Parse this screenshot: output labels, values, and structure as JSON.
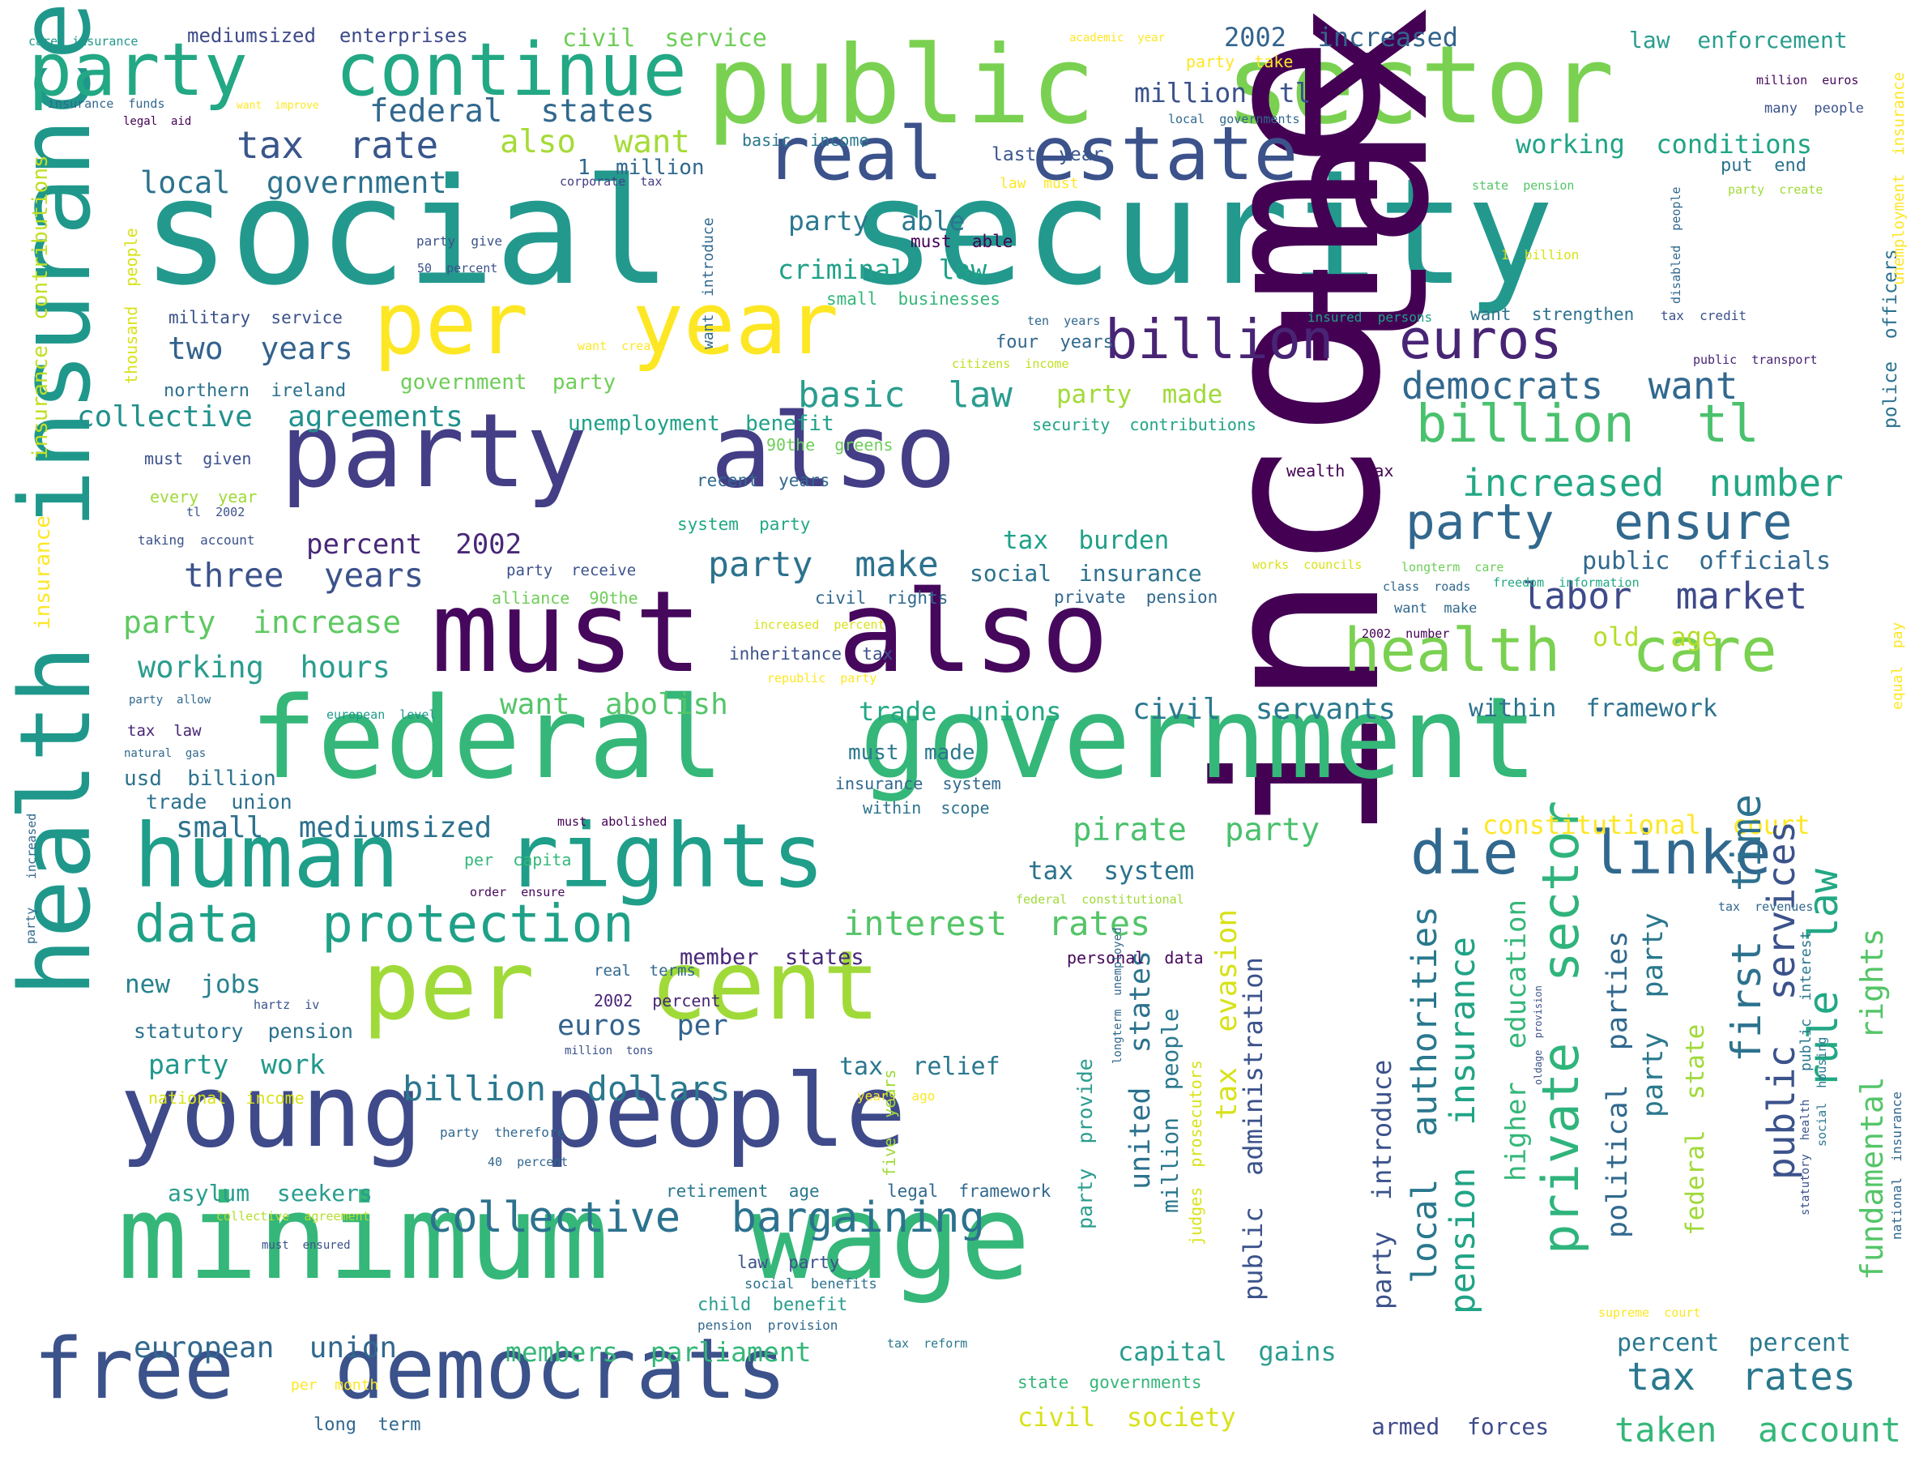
{
  "words": [
    {
      "t": "social  security",
      "c": "#23998e"
    },
    {
      "t": "public  sector",
      "c": "#7ad151"
    },
    {
      "t": "tax",
      "c": "#440154"
    },
    {
      "t": "income",
      "c": "#440154"
    },
    {
      "t": "party  also",
      "c": "#433e85"
    },
    {
      "t": "must  also",
      "c": "#46085c"
    },
    {
      "t": "federal  government",
      "c": "#35b779"
    },
    {
      "t": "health  insurance",
      "c": "#1f988b"
    },
    {
      "t": "minimum  wage",
      "c": "#35b779"
    },
    {
      "t": "per  cent",
      "c": "#a0da39"
    },
    {
      "t": "young  people",
      "c": "#3e4a89"
    },
    {
      "t": "free  democrats",
      "c": "#3b528b"
    },
    {
      "t": "human  rights",
      "c": "#1f9e89"
    },
    {
      "t": "real  estate",
      "c": "#3b528b"
    },
    {
      "t": "per  year",
      "c": "#fde725"
    },
    {
      "t": "party  continue",
      "c": "#22a884"
    },
    {
      "t": "billion  euros",
      "c": "#482475"
    },
    {
      "t": "billion  tl",
      "c": "#4ac16d"
    },
    {
      "t": "health  care",
      "c": "#7ad151"
    },
    {
      "t": "die  linke",
      "c": "#31688e"
    },
    {
      "t": "data  protection",
      "c": "#1fa188"
    },
    {
      "t": "collective  bargaining",
      "c": "#2c728e"
    },
    {
      "t": "party  ensure",
      "c": "#31688e"
    },
    {
      "t": "private  sector",
      "c": "#2fb47c"
    },
    {
      "t": "democrats  want",
      "c": "#31688e"
    },
    {
      "t": "increased  number",
      "c": "#22a884"
    },
    {
      "t": "labor  market",
      "c": "#3e4a89"
    },
    {
      "t": "tax  rates",
      "c": "#2a788e"
    },
    {
      "t": "taken  account",
      "c": "#35b779"
    },
    {
      "t": "tax  rate",
      "c": "#39568c"
    },
    {
      "t": "federal  states",
      "c": "#31688e"
    },
    {
      "t": "also  want",
      "c": "#a5db36"
    },
    {
      "t": "local  government",
      "c": "#2c728e"
    },
    {
      "t": "basic  law",
      "c": "#2a9d8f"
    },
    {
      "t": "party  made",
      "c": "#a0da39"
    },
    {
      "t": "collective  agreements",
      "c": "#21918c"
    },
    {
      "t": "two  years",
      "c": "#33638d"
    },
    {
      "t": "three  years",
      "c": "#3b528b"
    },
    {
      "t": "party  make",
      "c": "#2c728e"
    },
    {
      "t": "percent  2002",
      "c": "#482878"
    },
    {
      "t": "party  increase",
      "c": "#5ec962"
    },
    {
      "t": "working  hours",
      "c": "#2a9d8f"
    },
    {
      "t": "interest  rates",
      "c": "#54c568"
    },
    {
      "t": "civil  servants",
      "c": "#2a788e"
    },
    {
      "t": "pirate  party",
      "c": "#4ac16d"
    },
    {
      "t": "constitutional  court",
      "c": "#fde725"
    },
    {
      "t": "working  conditions",
      "c": "#20a486"
    },
    {
      "t": "law  enforcement",
      "c": "#2a9d8f"
    },
    {
      "t": "2002  increased",
      "c": "#33638d"
    },
    {
      "t": "civil  service",
      "c": "#6ece58"
    },
    {
      "t": "million  tl",
      "c": "#3b528b"
    },
    {
      "t": "party  able",
      "c": "#2a788e"
    },
    {
      "t": "criminal  law",
      "c": "#1fa188"
    },
    {
      "t": "euros  per",
      "c": "#33638d"
    },
    {
      "t": "billion  dollars",
      "c": "#2a788e"
    },
    {
      "t": "tax  relief",
      "c": "#2a788e"
    },
    {
      "t": "party  work",
      "c": "#1f988b"
    },
    {
      "t": "new  jobs",
      "c": "#26828e"
    },
    {
      "t": "tax  system",
      "c": "#2c728e"
    },
    {
      "t": "small  mediumsized",
      "c": "#2c728e"
    },
    {
      "t": "european  union",
      "c": "#31688e"
    },
    {
      "t": "members  parliament",
      "c": "#35b779"
    },
    {
      "t": "capital  gains",
      "c": "#2a9d8f"
    },
    {
      "t": "percent  percent",
      "c": "#2a788e"
    },
    {
      "t": "armed  forces",
      "c": "#3e4a89"
    },
    {
      "t": "civil  society",
      "c": "#d8e219"
    },
    {
      "t": "trade  unions",
      "c": "#22a884"
    },
    {
      "t": "want  abolish",
      "c": "#54c568"
    },
    {
      "t": "within  framework",
      "c": "#2c728e"
    },
    {
      "t": "tax  burden",
      "c": "#1fa188"
    },
    {
      "t": "social  insurance",
      "c": "#2c728e"
    },
    {
      "t": "public  officials",
      "c": "#31688e"
    },
    {
      "t": "old  age",
      "c": "#b5de2b"
    },
    {
      "t": "unemployment  benefit",
      "c": "#1fa188"
    },
    {
      "t": "government  party",
      "c": "#6ece58"
    },
    {
      "t": "asylum  seekers",
      "c": "#2a9d8f"
    },
    {
      "t": "member  states",
      "c": "#482878"
    },
    {
      "t": "statutory  pension",
      "c": "#2c728e"
    },
    {
      "t": "local  authorities",
      "c": "#2a788e"
    },
    {
      "t": "pension  insurance",
      "c": "#20a486"
    },
    {
      "t": "first  time",
      "c": "#2c728e"
    },
    {
      "t": "public  services",
      "c": "#3b528b"
    },
    {
      "t": "rule  law",
      "c": "#22a884"
    },
    {
      "t": "fundamental  rights",
      "c": "#54c568"
    },
    {
      "t": "political  parties",
      "c": "#31688e"
    },
    {
      "t": "party  party",
      "c": "#2a788e"
    },
    {
      "t": "higher  education",
      "c": "#35b779"
    },
    {
      "t": "federal  state",
      "c": "#a0da39"
    },
    {
      "t": "tax  evasion",
      "c": "#d8e219"
    },
    {
      "t": "public  administration",
      "c": "#3b528b"
    },
    {
      "t": "party  introduce",
      "c": "#3b528b"
    },
    {
      "t": "united  states",
      "c": "#2c728e"
    },
    {
      "t": "million  people",
      "c": "#2a788e"
    },
    {
      "t": "party  provide",
      "c": "#2a9d8f"
    },
    {
      "t": "insurance  contributions",
      "c": "#c2df23"
    },
    {
      "t": "police  officers",
      "c": "#2c728e"
    },
    {
      "t": "unemployment  insurance",
      "c": "#fde725"
    },
    {
      "t": "mediumsized  enterprises",
      "c": "#3e4a89"
    },
    {
      "t": "care  insurance",
      "c": "#1f988b"
    },
    {
      "t": "insurance  funds",
      "c": "#31688e"
    },
    {
      "t": "legal  aid",
      "c": "#440154"
    },
    {
      "t": "want  improve",
      "c": "#fde725"
    },
    {
      "t": "basic  income",
      "c": "#2a788e"
    },
    {
      "t": "last  year",
      "c": "#39568c"
    },
    {
      "t": "1  million",
      "c": "#31688e"
    },
    {
      "t": "corporate  tax",
      "c": "#433e85"
    },
    {
      "t": "must  able",
      "c": "#440154"
    },
    {
      "t": "law  must",
      "c": "#fde725"
    },
    {
      "t": "academic  year",
      "c": "#fde725"
    },
    {
      "t": "party  take",
      "c": "#fde725"
    },
    {
      "t": "million  euros",
      "c": "#46085c"
    },
    {
      "t": "local  governments",
      "c": "#31688e"
    },
    {
      "t": "many  people",
      "c": "#3b528b"
    },
    {
      "t": "put  end",
      "c": "#2c728e"
    },
    {
      "t": "state  pension",
      "c": "#54c568"
    },
    {
      "t": "party  create",
      "c": "#a0da39"
    },
    {
      "t": "1  billion",
      "c": "#d8e219"
    },
    {
      "t": "party  give",
      "c": "#3b528b"
    },
    {
      "t": "50  percent",
      "c": "#3b528b"
    },
    {
      "t": "military  service",
      "c": "#3b528b"
    },
    {
      "t": "northern  ireland",
      "c": "#2c728e"
    },
    {
      "t": "small  businesses",
      "c": "#35b779"
    },
    {
      "t": "four  years",
      "c": "#31688e"
    },
    {
      "t": "ten  years",
      "c": "#31688e"
    },
    {
      "t": "insured  persons",
      "c": "#1fa188"
    },
    {
      "t": "want  strengthen",
      "c": "#2c728e"
    },
    {
      "t": "tax  credit",
      "c": "#3b528b"
    },
    {
      "t": "public  transport",
      "c": "#482475"
    },
    {
      "t": "want  create",
      "c": "#fde725"
    },
    {
      "t": "citizens  income",
      "c": "#c2df23"
    },
    {
      "t": "security  contributions",
      "c": "#20a486"
    },
    {
      "t": "must  given",
      "c": "#3b528b"
    },
    {
      "t": "90the  greens",
      "c": "#6ece58"
    },
    {
      "t": "recent  years",
      "c": "#31688e"
    },
    {
      "t": "every  year",
      "c": "#a0da39"
    },
    {
      "t": "tl  2002",
      "c": "#3b528b"
    },
    {
      "t": "taking  account",
      "c": "#3b528b"
    },
    {
      "t": "system  party",
      "c": "#22a884"
    },
    {
      "t": "wealth  tax",
      "c": "#440154"
    },
    {
      "t": "party  receive",
      "c": "#3b528b"
    },
    {
      "t": "alliance  90the",
      "c": "#6ece58"
    },
    {
      "t": "civil  rights",
      "c": "#31688e"
    },
    {
      "t": "private  pension",
      "c": "#31688e"
    },
    {
      "t": "works  councils",
      "c": "#d8e219"
    },
    {
      "t": "longterm  care",
      "c": "#6ece58"
    },
    {
      "t": "class  roads",
      "c": "#31688e"
    },
    {
      "t": "freedom  information",
      "c": "#22a884"
    },
    {
      "t": "want  make",
      "c": "#31688e"
    },
    {
      "t": "2002  number",
      "c": "#440154"
    },
    {
      "t": "increased  percent",
      "c": "#d8e219"
    },
    {
      "t": "inheritance  tax",
      "c": "#3b528b"
    },
    {
      "t": "republic  party",
      "c": "#fde725"
    },
    {
      "t": "party  allow",
      "c": "#31688e"
    },
    {
      "t": "tax  law",
      "c": "#482475"
    },
    {
      "t": "natural  gas",
      "c": "#31688e"
    },
    {
      "t": "european  level",
      "c": "#1f988b"
    },
    {
      "t": "usd  billion",
      "c": "#2c728e"
    },
    {
      "t": "trade  union",
      "c": "#2c728e"
    },
    {
      "t": "must  made",
      "c": "#2a788e"
    },
    {
      "t": "insurance  system",
      "c": "#31688e"
    },
    {
      "t": "within  scope",
      "c": "#2c728e"
    },
    {
      "t": "must  abolished",
      "c": "#440154"
    },
    {
      "t": "per  capita",
      "c": "#35b779"
    },
    {
      "t": "order  ensure",
      "c": "#46085c"
    },
    {
      "t": "federal  constitutional",
      "c": "#a0da39"
    },
    {
      "t": "personal  data",
      "c": "#46085c"
    },
    {
      "t": "real  terms",
      "c": "#31688e"
    },
    {
      "t": "2002  percent",
      "c": "#482475"
    },
    {
      "t": "hartz  iv",
      "c": "#3b528b"
    },
    {
      "t": "million  tons",
      "c": "#3b528b"
    },
    {
      "t": "national  income",
      "c": "#d8e219"
    },
    {
      "t": "years  ago",
      "c": "#fde725"
    },
    {
      "t": "party  therefore",
      "c": "#31688e"
    },
    {
      "t": "40  percent",
      "c": "#31688e"
    },
    {
      "t": "collective  agreement",
      "c": "#b5de2b"
    },
    {
      "t": "must  ensured",
      "c": "#3b528b"
    },
    {
      "t": "retirement  age",
      "c": "#2a788e"
    },
    {
      "t": "legal  framework",
      "c": "#31688e"
    },
    {
      "t": "law  party",
      "c": "#3b528b"
    },
    {
      "t": "social  benefits",
      "c": "#2c728e"
    },
    {
      "t": "child  benefit",
      "c": "#2a9d8f"
    },
    {
      "t": "pension  provision",
      "c": "#31688e"
    },
    {
      "t": "tax  reform",
      "c": "#2a788e"
    },
    {
      "t": "state  governments",
      "c": "#35b779"
    },
    {
      "t": "per  month",
      "c": "#fde725"
    },
    {
      "t": "long  term",
      "c": "#31688e"
    },
    {
      "t": "supreme  court",
      "c": "#fde725"
    },
    {
      "t": "tax  revenues",
      "c": "#31688e"
    },
    {
      "t": "public  interest",
      "c": "#2a788e"
    },
    {
      "t": "equal  pay",
      "c": "#fde725"
    },
    {
      "t": "national  insurance",
      "c": "#31688e"
    },
    {
      "t": "statutory  health",
      "c": "#3b528b"
    },
    {
      "t": "social  housing",
      "c": "#2a788e"
    },
    {
      "t": "disabled  people",
      "c": "#31688e"
    },
    {
      "t": "thousand  people",
      "c": "#d8e219"
    },
    {
      "t": "want  introduce",
      "c": "#31688e"
    },
    {
      "t": "increased",
      "c": "#31688e"
    },
    {
      "t": "party",
      "c": "#31688e"
    },
    {
      "t": "oldage  provision",
      "c": "#3b528b"
    },
    {
      "t": "longterm  unemployed",
      "c": "#31688e"
    },
    {
      "t": "judges  prosecutors",
      "c": "#d8e219"
    },
    {
      "t": "five  years",
      "c": "#a0da39"
    },
    {
      "t": "insurance",
      "c": "#fde725"
    }
  ]
}
